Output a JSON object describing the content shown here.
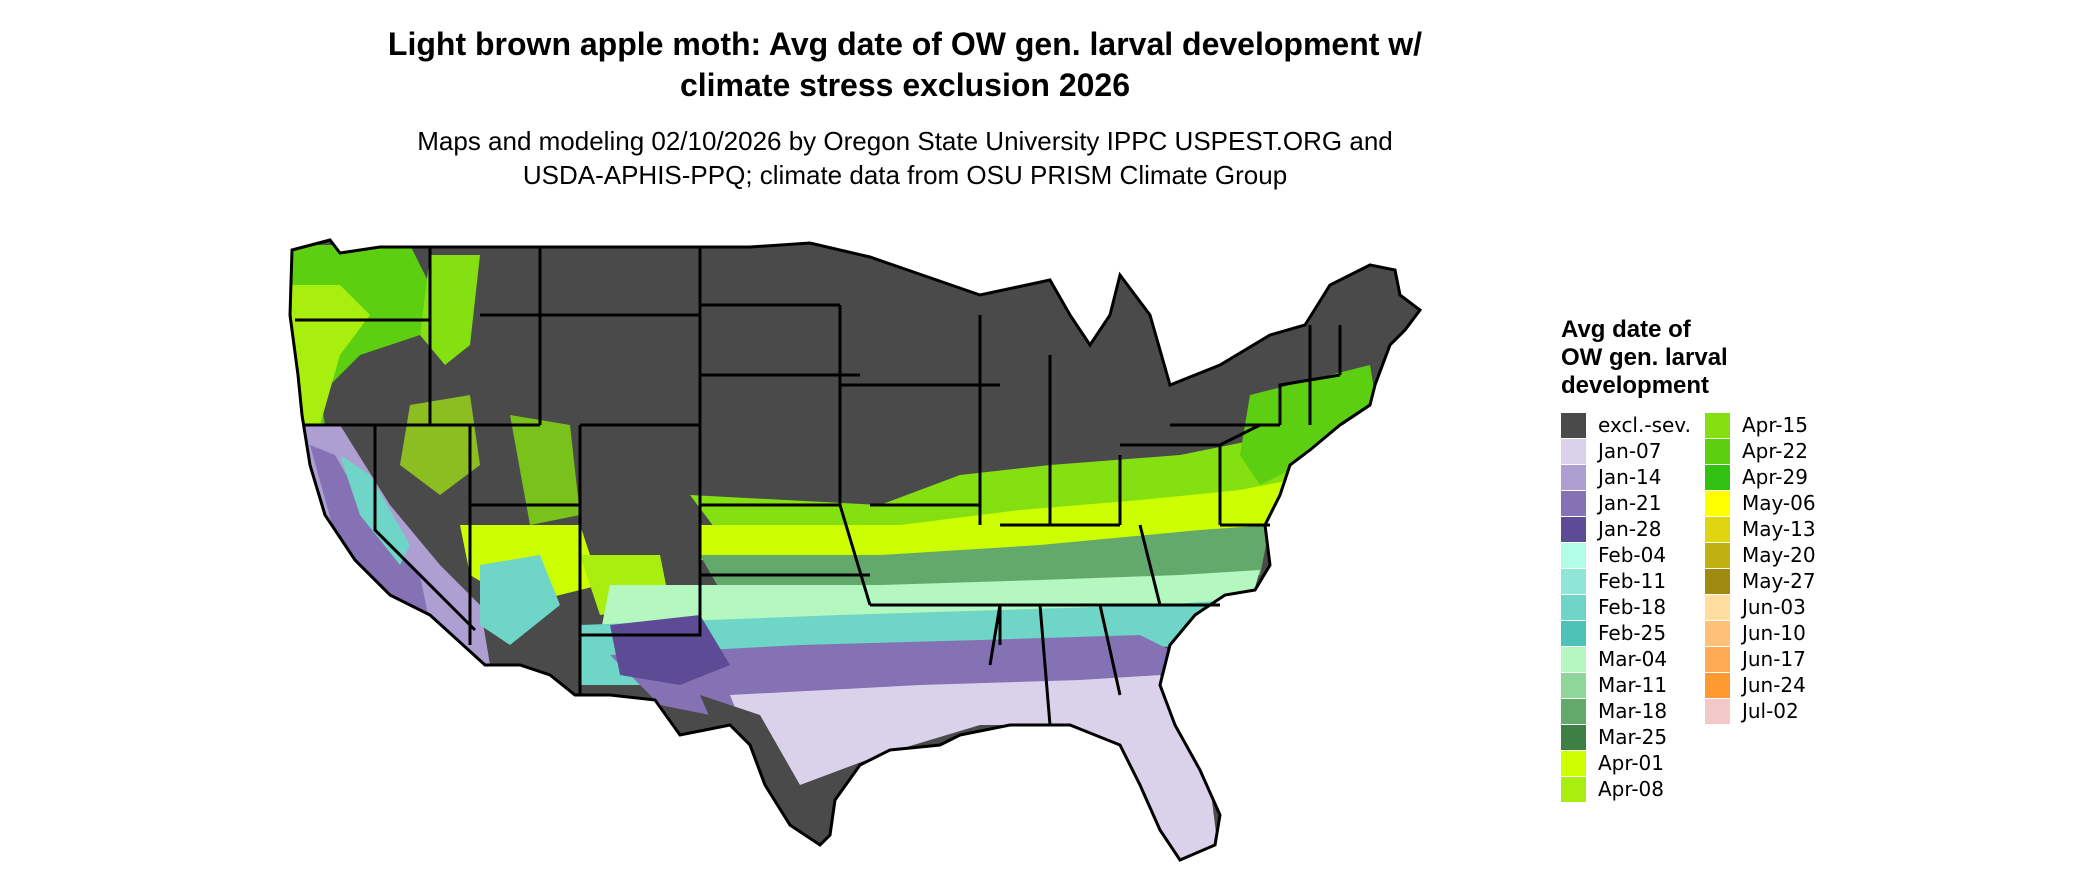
{
  "title_line1": "Light brown apple moth: Avg date of OW gen. larval development w/",
  "title_line2": "climate stress exclusion 2026",
  "subtitle_line1": "Maps and modeling 02/10/2026 by Oregon State University IPPC USPEST.ORG and",
  "subtitle_line2": "USDA-APHIS-PPQ; climate data from OSU PRISM Climate Group",
  "legend": {
    "title_lines": [
      "Avg date of",
      "OW gen. larval",
      "development"
    ],
    "col1": [
      {
        "label": "excl.-sev.",
        "color": "#4a4a4a"
      },
      {
        "label": "Jan-07",
        "color": "#d9d2ea"
      },
      {
        "label": "Jan-14",
        "color": "#ad9fd1"
      },
      {
        "label": "Jan-21",
        "color": "#8572b5"
      },
      {
        "label": "Jan-28",
        "color": "#5d4b95"
      },
      {
        "label": "Feb-04",
        "color": "#b2fde6"
      },
      {
        "label": "Feb-11",
        "color": "#8fe6d6"
      },
      {
        "label": "Feb-18",
        "color": "#6ed5c7"
      },
      {
        "label": "Feb-25",
        "color": "#4ec2b6"
      },
      {
        "label": "Mar-04",
        "color": "#b5f8bf"
      },
      {
        "label": "Mar-11",
        "color": "#8fd69b"
      },
      {
        "label": "Mar-18",
        "color": "#64a96c"
      },
      {
        "label": "Mar-25",
        "color": "#3e7f45"
      },
      {
        "label": "Apr-01",
        "color": "#ccff00"
      },
      {
        "label": "Apr-08",
        "color": "#a8ef0f"
      }
    ],
    "col2": [
      {
        "label": "Apr-15",
        "color": "#84e010"
      },
      {
        "label": "Apr-22",
        "color": "#5ccf10"
      },
      {
        "label": "Apr-29",
        "color": "#31c214"
      },
      {
        "label": "May-06",
        "color": "#ffff00"
      },
      {
        "label": "May-13",
        "color": "#e0d610"
      },
      {
        "label": "May-20",
        "color": "#c0b010"
      },
      {
        "label": "May-27",
        "color": "#a08a10"
      },
      {
        "label": "Jun-03",
        "color": "#ffdea0"
      },
      {
        "label": "Jun-10",
        "color": "#ffc07a"
      },
      {
        "label": "Jun-17",
        "color": "#ffaa55"
      },
      {
        "label": "Jun-24",
        "color": "#ff9a33"
      },
      {
        "label": "Jul-02",
        "color": "#f3c8c8"
      }
    ]
  }
}
